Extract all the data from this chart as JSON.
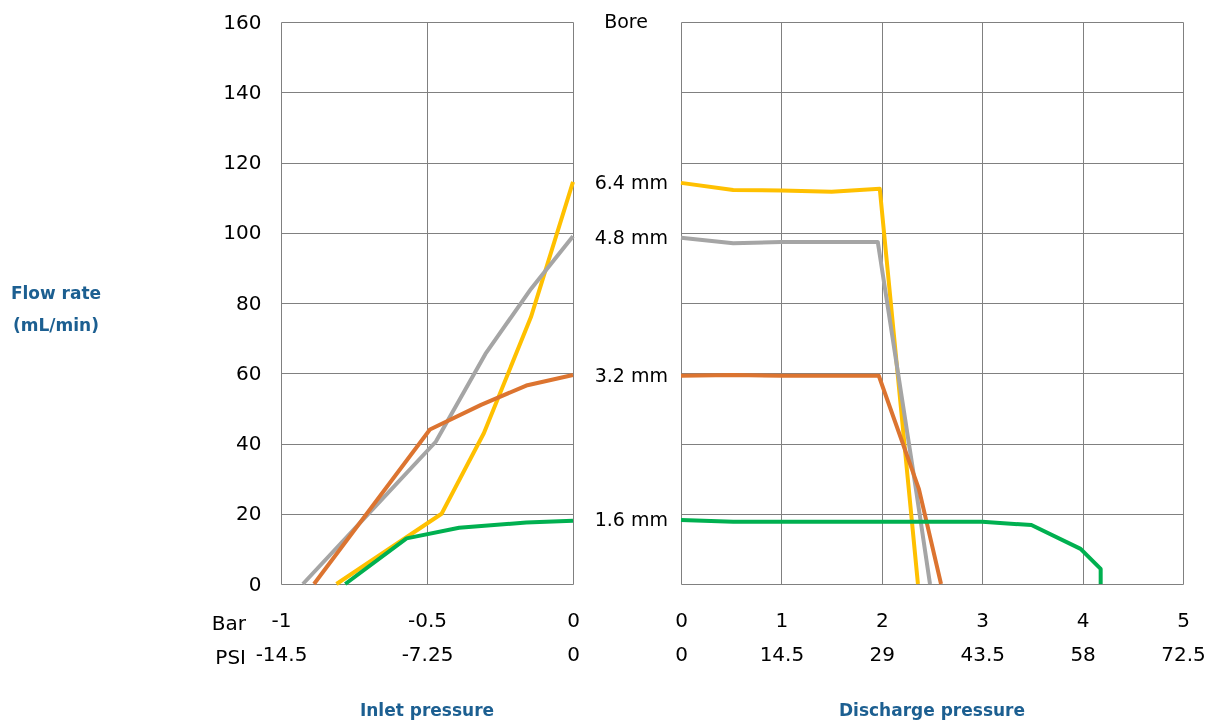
{
  "chart_data": [
    {
      "type": "line",
      "xlabel": "Inlet pressure",
      "ylabel": "Flow rate (mL/min)",
      "annotations": [
        "Bar",
        "PSI"
      ],
      "xlim": [
        -1,
        0
      ],
      "xticks": [
        -1,
        -0.5,
        0
      ],
      "x2lim": [
        -14.5,
        0
      ],
      "x2ticks": [
        -14.5,
        -7.25,
        0
      ],
      "ylim": [
        0,
        160
      ],
      "yticks": [
        0,
        20,
        40,
        60,
        80,
        100,
        120,
        140,
        160
      ],
      "grid": true,
      "legend": false,
      "series": [
        {
          "color": "#ffc000",
          "x": [
            -0.81,
            -0.45,
            -0.305,
            -0.144,
            0
          ],
          "values": [
            0,
            20,
            43,
            76,
            114.5
          ]
        },
        {
          "color": "#a5a5a5",
          "x": [
            -0.925,
            -0.47,
            -0.3,
            -0.144,
            0
          ],
          "values": [
            0,
            40.5,
            65.5,
            84,
            99
          ]
        },
        {
          "color": "#dc7430",
          "x": [
            -0.887,
            -0.49,
            -0.315,
            -0.16,
            0
          ],
          "values": [
            0,
            44,
            51,
            56.5,
            59.5
          ]
        },
        {
          "color": "#00b050",
          "x": [
            -0.78,
            -0.57,
            -0.39,
            -0.16,
            0
          ],
          "values": [
            0,
            13,
            16,
            17.5,
            18
          ]
        }
      ]
    },
    {
      "type": "line",
      "xlabel": "Discharge pressure",
      "legend_title": "Bore",
      "xlim": [
        0,
        5
      ],
      "xticks": [
        0,
        1,
        2,
        3,
        4,
        5
      ],
      "x2lim": [
        0,
        72.5
      ],
      "x2ticks": [
        0,
        14.5,
        29,
        43.5,
        58,
        72.5
      ],
      "ylim": [
        0,
        160
      ],
      "yticks": [
        0,
        20,
        40,
        60,
        80,
        100,
        120,
        140,
        160
      ],
      "grid": true,
      "legend": false,
      "tick_labels": "x",
      "series": [
        {
          "name": "6.4 mm",
          "color": "#ffc000",
          "x": [
            0,
            0.52,
            1,
            1.5,
            1.98,
            2.36
          ],
          "values": [
            114.2,
            112.2,
            112,
            111.7,
            112.5,
            0
          ]
        },
        {
          "name": "4.8 mm",
          "color": "#a5a5a5",
          "x": [
            0,
            0.52,
            1,
            1.96,
            2.34,
            2.48
          ],
          "values": [
            98.6,
            97,
            97.4,
            97.4,
            27,
            0
          ]
        },
        {
          "name": "3.2 mm",
          "color": "#dc7430",
          "x": [
            0,
            0.52,
            1,
            1.97,
            2.37,
            2.59
          ],
          "values": [
            59.3,
            59.5,
            59.3,
            59.3,
            27,
            0
          ]
        },
        {
          "name": "1.6 mm",
          "color": "#00b050",
          "x": [
            0,
            0.52,
            1.5,
            3,
            3.49,
            3.98,
            4.18,
            4.18
          ],
          "values": [
            18.2,
            17.7,
            17.7,
            17.7,
            16.8,
            10,
            4.3,
            0
          ]
        }
      ]
    }
  ]
}
